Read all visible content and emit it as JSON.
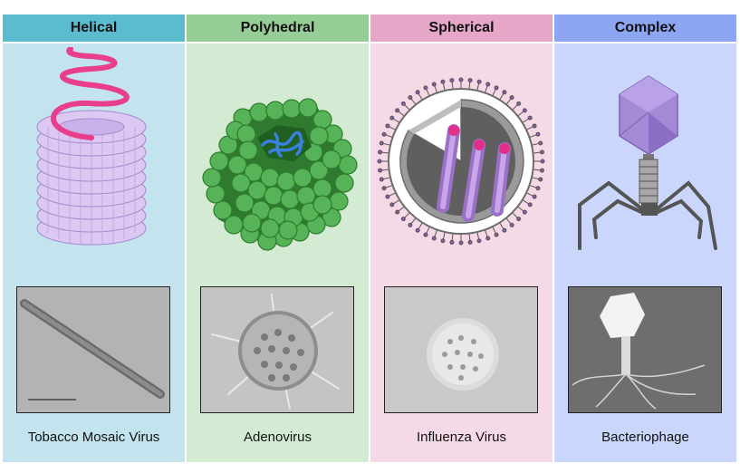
{
  "columns": [
    {
      "title": "Helical",
      "caption": "Tobacco Mosaic Virus",
      "header_color": "#5bbcd0",
      "panel_color": "#c3e3ee"
    },
    {
      "title": "Polyhedral",
      "caption": "Adenovirus",
      "header_color": "#96cc96",
      "panel_color": "#d3ebd3"
    },
    {
      "title": "Spherical",
      "caption": "Influenza Virus",
      "header_color": "#e6a6c8",
      "panel_color": "#f6d9e6"
    },
    {
      "title": "Complex",
      "caption": "Bacteriophage",
      "header_color": "#8ca6f2",
      "panel_color": "#cad6fb"
    }
  ]
}
